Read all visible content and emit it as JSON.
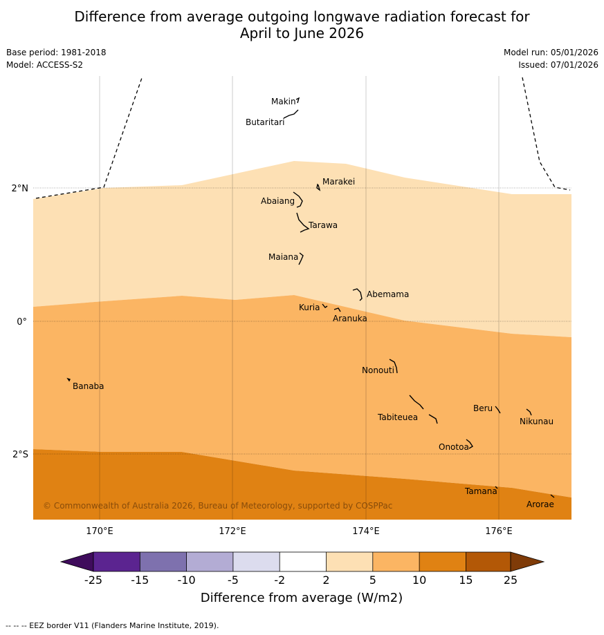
{
  "title_line1": "Difference from average outgoing longwave radiation forecast for",
  "title_line2": "April to June 2026",
  "base_period": "Base period: 1981-2018",
  "model": "Model: ACCESS-S2",
  "model_run": "Model run: 05/01/2026",
  "issued": "Issued: 07/01/2026",
  "copyright": "© Commonwealth of Australia 2026, Bureau of Meteorology, supported by COSPPac",
  "footnote": "--  --  -- EEZ border V11 (Flanders Marine Institute, 2019).",
  "axes": {
    "lon_labels": [
      "170°E",
      "172°E",
      "174°E",
      "176°E"
    ],
    "lat_labels": [
      "2°N",
      "0°",
      "2°S"
    ]
  },
  "islands": [
    "Makin",
    "Butaritari",
    "Marakei",
    "Abaiang",
    "Tarawa",
    "Maiana",
    "Abemama",
    "Kuria",
    "Aranuka",
    "Nonouti",
    "Banaba",
    "Beru",
    "Nikunau",
    "Tabiteuea",
    "Onotoa",
    "Tamana",
    "Arorae"
  ],
  "legend": {
    "title": "Difference from average (W/m2)",
    "ticks": [
      "-25",
      "-15",
      "-10",
      "-5",
      "-2",
      "2",
      "5",
      "10",
      "15",
      "25"
    ],
    "colors": [
      "#3f0c5c",
      "#5b2490",
      "#7e71ae",
      "#b3acd4",
      "#dcdcee",
      "#ffffff",
      "#fde0b4",
      "#fbb563",
      "#e08213",
      "#b35806",
      "#7f3b08"
    ]
  },
  "colors": {
    "band_light": "#fde0b4",
    "band_mid": "#fbb563",
    "band_dark": "#e08213"
  }
}
